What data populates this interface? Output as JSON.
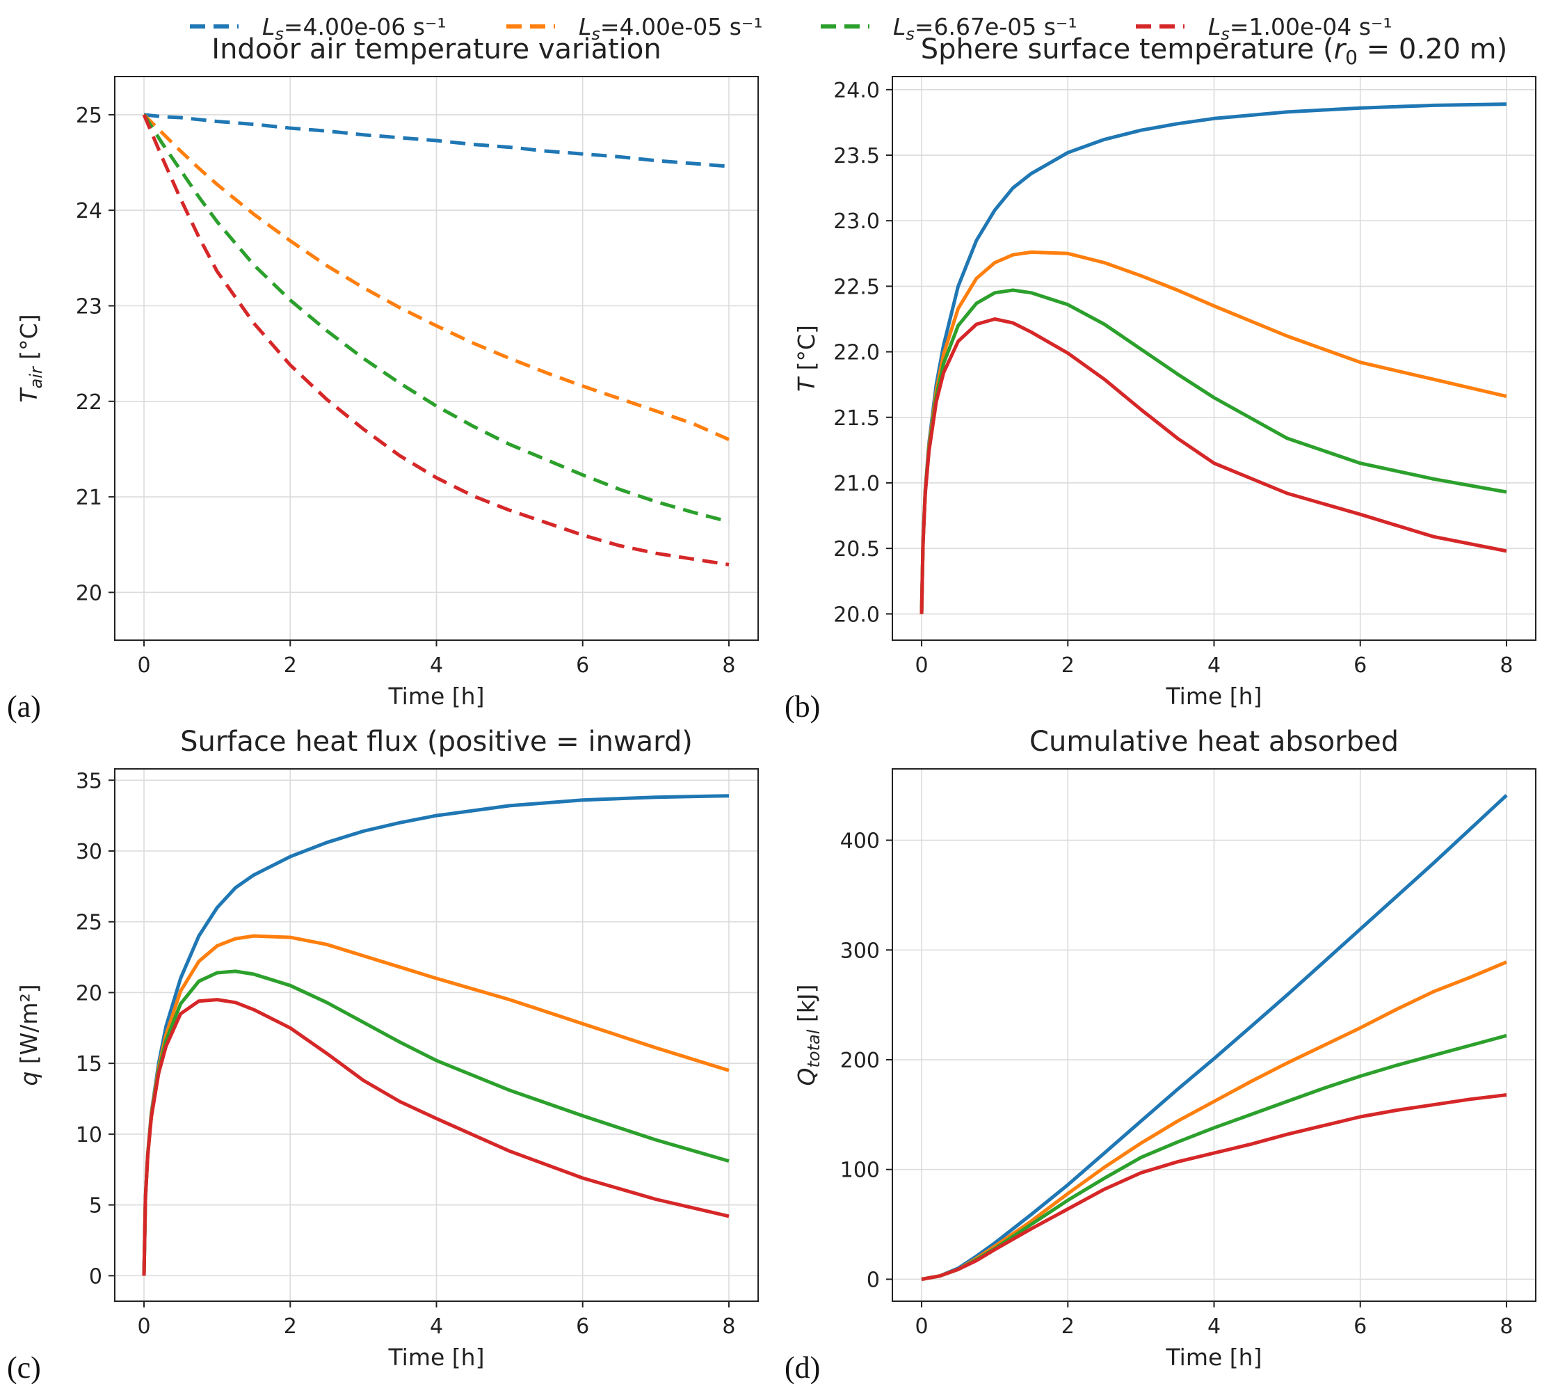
{
  "figure": {
    "legend": [
      {
        "name": "L_s=4.00e-06 s⁻¹",
        "sym": "L",
        "sub": "s",
        "rest": "=4.00e-06 s⁻¹",
        "color": "#1f77b4"
      },
      {
        "name": "L_s=4.00e-05 s⁻¹",
        "sym": "L",
        "sub": "s",
        "rest": "=4.00e-05 s⁻¹",
        "color": "#ff7f0e"
      },
      {
        "name": "L_s=6.67e-05 s⁻¹",
        "sym": "L",
        "sub": "s",
        "rest": "=6.67e-05 s⁻¹",
        "color": "#2ca02c"
      },
      {
        "name": "L_s=1.00e-04 s⁻¹",
        "sym": "L",
        "sub": "s",
        "rest": "=1.00e-04 s⁻¹",
        "color": "#d62728"
      }
    ]
  },
  "chart_data": [
    {
      "panel": "(a)",
      "type": "line",
      "title": "Indoor air temperature variation",
      "xlabel": "Time [h]",
      "ylabel": {
        "sym": "T",
        "sub": "air",
        "rest": " [°C]"
      },
      "xlim": [
        -0.4,
        8.4
      ],
      "ylim": [
        19.5,
        25.4
      ],
      "xticks": [
        0,
        2,
        4,
        6,
        8
      ],
      "yticks": [
        20,
        21,
        22,
        23,
        24,
        25
      ],
      "ytick_labels": [
        "20",
        "21",
        "22",
        "23",
        "24",
        "25"
      ],
      "grid": true,
      "dashed": true,
      "x": [
        0,
        0.25,
        0.5,
        0.75,
        1,
        1.5,
        2,
        2.5,
        3,
        3.5,
        4,
        4.5,
        5,
        5.5,
        6,
        6.5,
        7,
        7.5,
        8
      ],
      "series": [
        {
          "name": "L_s=4.00e-06 s⁻¹",
          "values": [
            25.0,
            24.98,
            24.97,
            24.95,
            24.93,
            24.9,
            24.86,
            24.83,
            24.79,
            24.76,
            24.73,
            24.69,
            24.66,
            24.62,
            24.59,
            24.56,
            24.52,
            24.49,
            24.46
          ]
        },
        {
          "name": "L_s=4.00e-05 s⁻¹",
          "values": [
            25.0,
            24.81,
            24.62,
            24.44,
            24.27,
            23.96,
            23.68,
            23.42,
            23.19,
            22.98,
            22.79,
            22.61,
            22.45,
            22.3,
            22.16,
            22.03,
            21.9,
            21.77,
            21.6
          ]
        },
        {
          "name": "L_s=6.67e-05 s⁻¹",
          "values": [
            25.0,
            24.7,
            24.42,
            24.14,
            23.88,
            23.43,
            23.06,
            22.74,
            22.45,
            22.19,
            21.95,
            21.74,
            21.55,
            21.39,
            21.23,
            21.08,
            20.95,
            20.84,
            20.74
          ]
        },
        {
          "name": "L_s=1.00e-04 s⁻¹",
          "values": [
            25.0,
            24.55,
            24.12,
            23.72,
            23.36,
            22.82,
            22.38,
            22.02,
            21.71,
            21.43,
            21.2,
            21.01,
            20.86,
            20.73,
            20.6,
            20.49,
            20.41,
            20.35,
            20.29
          ]
        }
      ]
    },
    {
      "panel": "(b)",
      "type": "line",
      "title": "Sphere surface temperature (r₀ = 0.20 m)",
      "title_parts": {
        "pre": "Sphere surface temperature (",
        "sym": "r",
        "sub": "0",
        "post": " = 0.20 m)"
      },
      "xlabel": "Time [h]",
      "ylabel": {
        "sym": "T",
        "sub": "",
        "rest": " [°C]"
      },
      "xlim": [
        -0.4,
        8.4
      ],
      "ylim": [
        19.8,
        24.1
      ],
      "xticks": [
        0,
        2,
        4,
        6,
        8
      ],
      "yticks": [
        20.0,
        20.5,
        21.0,
        21.5,
        22.0,
        22.5,
        23.0,
        23.5,
        24.0
      ],
      "ytick_labels": [
        "20.0",
        "20.5",
        "21.0",
        "21.5",
        "22.0",
        "22.5",
        "23.0",
        "23.5",
        "24.0"
      ],
      "grid": true,
      "dashed": false,
      "x": [
        0,
        0.02,
        0.05,
        0.1,
        0.2,
        0.3,
        0.5,
        0.75,
        1,
        1.25,
        1.5,
        2,
        2.5,
        3,
        3.5,
        4,
        5,
        6,
        7,
        8
      ],
      "series": [
        {
          "name": "L_s=4.00e-06 s⁻¹",
          "values": [
            20.0,
            20.55,
            20.95,
            21.3,
            21.75,
            22.05,
            22.5,
            22.85,
            23.08,
            23.25,
            23.36,
            23.52,
            23.62,
            23.69,
            23.74,
            23.78,
            23.83,
            23.86,
            23.88,
            23.89
          ]
        },
        {
          "name": "L_s=4.00e-05 s⁻¹",
          "values": [
            20.0,
            20.55,
            20.94,
            21.28,
            21.7,
            21.98,
            22.33,
            22.56,
            22.68,
            22.74,
            22.76,
            22.75,
            22.68,
            22.58,
            22.47,
            22.35,
            22.12,
            21.92,
            21.79,
            21.66
          ]
        },
        {
          "name": "L_s=6.67e-05 s⁻¹",
          "values": [
            20.0,
            20.55,
            20.93,
            21.26,
            21.66,
            21.91,
            22.2,
            22.37,
            22.45,
            22.47,
            22.45,
            22.36,
            22.21,
            22.02,
            21.83,
            21.65,
            21.34,
            21.15,
            21.03,
            20.93
          ]
        },
        {
          "name": "L_s=1.00e-04 s⁻¹",
          "values": [
            20.0,
            20.54,
            20.92,
            21.24,
            21.62,
            21.84,
            22.08,
            22.21,
            22.25,
            22.22,
            22.15,
            21.99,
            21.79,
            21.56,
            21.34,
            21.15,
            20.92,
            20.76,
            20.59,
            20.48
          ]
        }
      ]
    },
    {
      "panel": "(c)",
      "type": "line",
      "title": "Surface heat flux (positive = inward)",
      "xlabel": "Time [h]",
      "ylabel": {
        "sym": "q",
        "sub": "",
        "rest": " [W/m²]"
      },
      "xlim": [
        -0.4,
        8.4
      ],
      "ylim": [
        -1.8,
        35.8
      ],
      "xticks": [
        0,
        2,
        4,
        6,
        8
      ],
      "yticks": [
        0,
        5,
        10,
        15,
        20,
        25,
        30,
        35
      ],
      "ytick_labels": [
        "0",
        "5",
        "10",
        "15",
        "20",
        "25",
        "30",
        "35"
      ],
      "grid": true,
      "dashed": false,
      "x": [
        0,
        0.02,
        0.05,
        0.1,
        0.2,
        0.3,
        0.5,
        0.75,
        1,
        1.25,
        1.5,
        2,
        2.5,
        3,
        3.5,
        4,
        5,
        6,
        7,
        8
      ],
      "series": [
        {
          "name": "L_s=4.00e-06 s⁻¹",
          "values": [
            0,
            5.5,
            8.5,
            11.5,
            15.0,
            17.6,
            21.0,
            24.0,
            26.0,
            27.4,
            28.3,
            29.6,
            30.6,
            31.4,
            32.0,
            32.5,
            33.2,
            33.6,
            33.8,
            33.9
          ]
        },
        {
          "name": "L_s=4.00e-05 s⁻¹",
          "values": [
            0,
            5.5,
            8.5,
            11.4,
            14.7,
            17.0,
            20.1,
            22.2,
            23.3,
            23.8,
            24.0,
            23.9,
            23.4,
            22.6,
            21.8,
            21.0,
            19.5,
            17.8,
            16.1,
            14.5
          ]
        },
        {
          "name": "L_s=6.67e-05 s⁻¹",
          "values": [
            0,
            5.5,
            8.5,
            11.3,
            14.5,
            16.6,
            19.2,
            20.8,
            21.4,
            21.5,
            21.3,
            20.5,
            19.3,
            17.9,
            16.5,
            15.2,
            13.1,
            11.3,
            9.6,
            8.1
          ]
        },
        {
          "name": "L_s=1.00e-04 s⁻¹",
          "values": [
            0,
            5.5,
            8.4,
            11.2,
            14.3,
            16.2,
            18.5,
            19.4,
            19.5,
            19.3,
            18.8,
            17.5,
            15.7,
            13.8,
            12.3,
            11.1,
            8.8,
            6.9,
            5.4,
            4.2
          ]
        }
      ]
    },
    {
      "panel": "(d)",
      "type": "line",
      "title": "Cumulative heat absorbed",
      "xlabel": "Time [h]",
      "ylabel": {
        "sym": "Q",
        "sub": "total",
        "rest": " [kJ]"
      },
      "xlim": [
        -0.4,
        8.4
      ],
      "ylim": [
        -20,
        465
      ],
      "xticks": [
        0,
        2,
        4,
        6,
        8
      ],
      "yticks": [
        0,
        100,
        200,
        300,
        400
      ],
      "ytick_labels": [
        "0",
        "100",
        "200",
        "300",
        "400"
      ],
      "grid": true,
      "dashed": false,
      "x": [
        0,
        0.25,
        0.5,
        0.75,
        1,
        1.5,
        2,
        2.5,
        3,
        3.5,
        4,
        4.5,
        5,
        5.5,
        6,
        6.5,
        7,
        7.5,
        8
      ],
      "series": [
        {
          "name": "L_s=4.00e-06 s⁻¹",
          "values": [
            0,
            3,
            10,
            21,
            33,
            59,
            86,
            115,
            144,
            173,
            201,
            230,
            259,
            289,
            319,
            349,
            379,
            410,
            441
          ]
        },
        {
          "name": "L_s=4.00e-05 s⁻¹",
          "values": [
            0,
            3,
            9,
            19,
            30,
            53,
            78,
            102,
            124,
            144,
            162,
            180,
            197,
            213,
            229,
            246,
            262,
            275,
            289
          ]
        },
        {
          "name": "L_s=6.67e-05 s⁻¹",
          "values": [
            0,
            3,
            9,
            18,
            28,
            50,
            72,
            92,
            111,
            125,
            138,
            150,
            162,
            174,
            185,
            195,
            204,
            213,
            222
          ]
        },
        {
          "name": "L_s=1.00e-04 s⁻¹",
          "values": [
            0,
            3,
            9,
            17,
            27,
            46,
            64,
            82,
            97,
            107,
            115,
            123,
            132,
            140,
            148,
            154,
            159,
            164,
            168
          ]
        }
      ]
    }
  ]
}
